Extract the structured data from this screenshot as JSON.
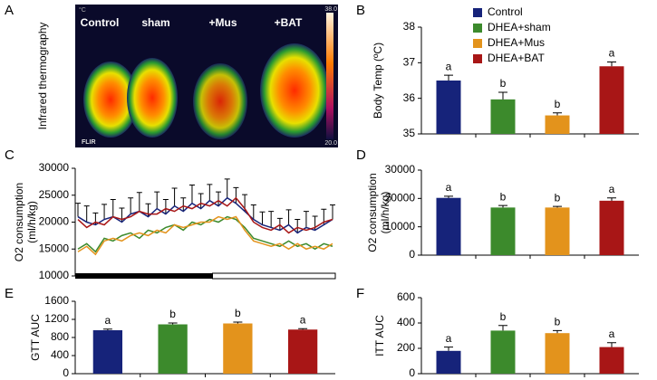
{
  "chart_data": [
    {
      "type": "image",
      "panel": "A",
      "ylabel": "Infrared thermography",
      "labels": [
        "Control",
        "sham",
        "+Mus",
        "+BAT"
      ],
      "unit": "°C",
      "scale_max": "38.0",
      "scale_min": "20.0",
      "brand": "FLIR"
    },
    {
      "type": "bar",
      "panel": "B",
      "ylabel": "Body Temp (ºC)",
      "categories": [
        "Control",
        "DHEA+sham",
        "DHEA+Mus",
        "DHEA+BAT"
      ],
      "colors": [
        "#16237a",
        "#3c8a2c",
        "#e3931c",
        "#a81616"
      ],
      "values": [
        36.5,
        35.97,
        35.52,
        36.9
      ],
      "errors": [
        0.15,
        0.2,
        0.07,
        0.12
      ],
      "labels": [
        "a",
        "b",
        "b",
        "a"
      ],
      "ylim": [
        35,
        38
      ],
      "yticks": [
        35,
        36,
        37,
        38
      ]
    },
    {
      "type": "line",
      "panel": "C",
      "ylabel": [
        "O2 consumption",
        "(ml/h/kg)"
      ],
      "ylim": [
        10000,
        30000
      ],
      "yticks": [
        10000,
        15000,
        20000,
        25000,
        30000
      ],
      "series": [
        {
          "name": "Control",
          "color": "#16237a",
          "values": [
            21000,
            20000,
            19500,
            20500,
            21000,
            20000,
            21500,
            22000,
            21000,
            22500,
            21500,
            23000,
            22000,
            23500,
            22500,
            24000,
            23000,
            24500,
            23500,
            22000,
            20500,
            19500,
            19000,
            18500,
            19500,
            18000,
            19000,
            18500,
            19500,
            20500
          ],
          "errors": [
            2500,
            3000,
            2200,
            2800,
            3200,
            2600,
            3000,
            3500,
            2400,
            3100,
            2700,
            3300,
            2500,
            3400,
            2800,
            3000,
            2600,
            3500,
            2900,
            3100,
            2700,
            2400,
            3000,
            2200,
            2800,
            2500,
            3000,
            2600,
            2900,
            2700
          ]
        },
        {
          "name": "DHEA+BAT",
          "color": "#a81616",
          "values": [
            20500,
            19000,
            20000,
            19500,
            21000,
            20500,
            21000,
            22000,
            21500,
            21500,
            22500,
            22000,
            23000,
            22500,
            23500,
            23000,
            24000,
            23000,
            24500,
            22500,
            20000,
            19000,
            18500,
            19500,
            18000,
            19000,
            18500,
            19000,
            20000,
            20500
          ]
        },
        {
          "name": "DHEA+sham",
          "color": "#3c8a2c",
          "values": [
            15000,
            16000,
            14500,
            17000,
            16500,
            17500,
            18000,
            17000,
            18500,
            18000,
            19000,
            19500,
            18500,
            20000,
            19500,
            20500,
            20000,
            21000,
            20500,
            19000,
            17000,
            16500,
            16000,
            15500,
            16500,
            15500,
            16000,
            15000,
            16000,
            15500
          ]
        },
        {
          "name": "DHEA+Mus",
          "color": "#e3931c",
          "values": [
            14500,
            15500,
            14000,
            16500,
            17000,
            16500,
            17500,
            18000,
            17500,
            18500,
            18000,
            19500,
            19000,
            19500,
            20000,
            20000,
            21000,
            20500,
            21000,
            18500,
            16500,
            16000,
            15500,
            16000,
            15000,
            16000,
            15000,
            15500,
            15000,
            16000
          ]
        }
      ]
    },
    {
      "type": "bar",
      "panel": "D",
      "ylabel": [
        "O2 consumption",
        "(ml/h/kg)"
      ],
      "categories": [
        null,
        null,
        null,
        null
      ],
      "colors": [
        "#16237a",
        "#3c8a2c",
        "#e3931c",
        "#a81616"
      ],
      "values": [
        20200,
        16800,
        16800,
        19200
      ],
      "errors": [
        600,
        700,
        400,
        1000
      ],
      "labels": [
        "a",
        "b",
        "b",
        "a"
      ],
      "ylim": [
        0,
        30000
      ],
      "yticks": [
        0,
        10000,
        20000,
        30000
      ]
    },
    {
      "type": "bar",
      "panel": "E",
      "ylabel": "GTT AUC",
      "categories": [
        null,
        null,
        null,
        null
      ],
      "colors": [
        "#16237a",
        "#3c8a2c",
        "#e3931c",
        "#a81616"
      ],
      "values": [
        960,
        1090,
        1110,
        975
      ],
      "errors": [
        25,
        30,
        30,
        20
      ],
      "labels": [
        "a",
        "b",
        "b",
        "a"
      ],
      "ylim": [
        0,
        1600
      ],
      "yticks": [
        0,
        400,
        800,
        1200,
        1600
      ]
    },
    {
      "type": "bar",
      "panel": "F",
      "ylabel": "ITT AUC",
      "categories": [
        null,
        null,
        null,
        null
      ],
      "colors": [
        "#16237a",
        "#3c8a2c",
        "#e3931c",
        "#a81616"
      ],
      "values": [
        180,
        340,
        320,
        210
      ],
      "errors": [
        30,
        40,
        20,
        35
      ],
      "labels": [
        "a",
        "b",
        "b",
        "a"
      ],
      "ylim": [
        0,
        600
      ],
      "yticks": [
        0,
        200,
        400,
        600
      ]
    }
  ]
}
